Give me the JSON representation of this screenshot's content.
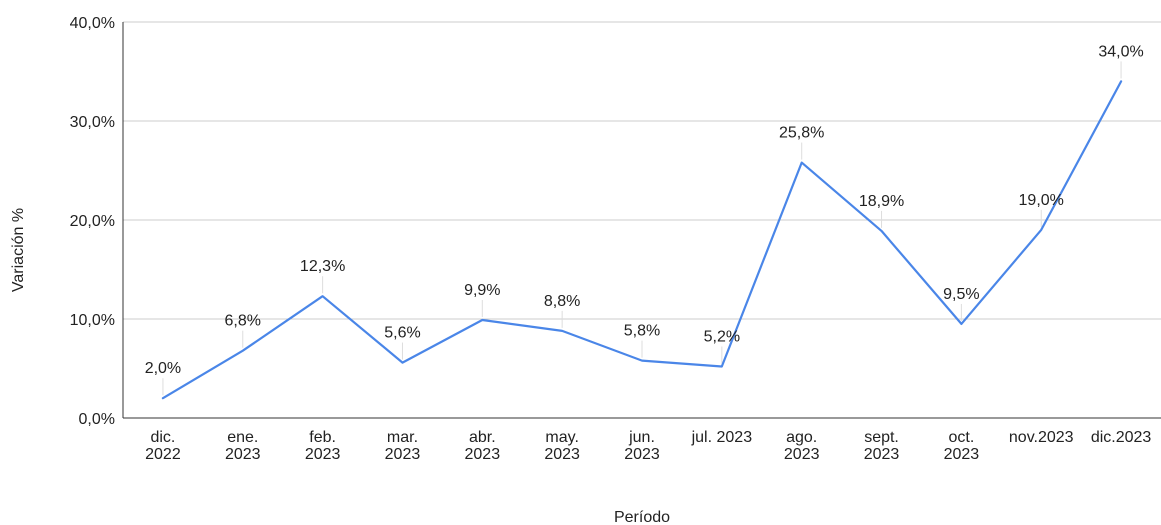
{
  "chart_data": {
    "type": "line",
    "title": "",
    "xlabel": "Período",
    "ylabel": "Variación %",
    "ylim": [
      0,
      40
    ],
    "yticks": [
      {
        "value": 0,
        "label": "0,0%"
      },
      {
        "value": 10,
        "label": "10,0%"
      },
      {
        "value": 20,
        "label": "20,0%"
      },
      {
        "value": 30,
        "label": "30,0%"
      },
      {
        "value": 40,
        "label": "40,0%"
      }
    ],
    "grid": true,
    "legend": "none",
    "line_color": "#4a86e8",
    "categories": [
      [
        "dic.",
        "2022"
      ],
      [
        "ene.",
        "2023"
      ],
      [
        "feb.",
        "2023"
      ],
      [
        "mar.",
        "2023"
      ],
      [
        "abr.",
        "2023"
      ],
      [
        "may.",
        "2023"
      ],
      [
        "jun.",
        "2023"
      ],
      [
        "jul. 2023"
      ],
      [
        "ago.",
        "2023"
      ],
      [
        "sept.",
        "2023"
      ],
      [
        "oct.",
        "2023"
      ],
      [
        "nov.2023"
      ],
      [
        "dic.2023"
      ]
    ],
    "series": [
      {
        "values": [
          2.0,
          6.8,
          12.3,
          5.6,
          9.9,
          8.8,
          5.8,
          5.2,
          25.8,
          18.9,
          9.5,
          19.0,
          34.0
        ],
        "labels": [
          "2,0%",
          "6,8%",
          "12,3%",
          "5,6%",
          "9,9%",
          "8,8%",
          "5,8%",
          "5,2%",
          "25,8%",
          "18,9%",
          "9,5%",
          "19,0%",
          "34,0%"
        ]
      }
    ]
  }
}
